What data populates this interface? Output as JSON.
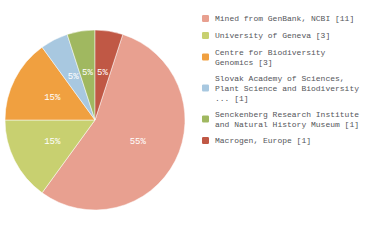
{
  "chart_data": {
    "type": "pie",
    "categories": [
      "Mined from GenBank, NCBI [11]",
      "University of Geneva [3]",
      "Centre for Biodiversity\nGenomics [3]",
      "Slovak Academy of Sciences,\nPlant Science and Biodiversity\n... [1]",
      "Senckenberg Research Institute\nand Natural History Museum [1]",
      "Macrogen, Europe [1]"
    ],
    "values": [
      55,
      15,
      15,
      5,
      5,
      5
    ],
    "value_labels": [
      "55%",
      "15%",
      "15%",
      "5%",
      "5%",
      "5%"
    ],
    "colors": [
      "#E8A090",
      "#C8D070",
      "#F0A040",
      "#A8C8E0",
      "#A0B860",
      "#C05845"
    ],
    "data_labels": true,
    "legend": "right"
  }
}
